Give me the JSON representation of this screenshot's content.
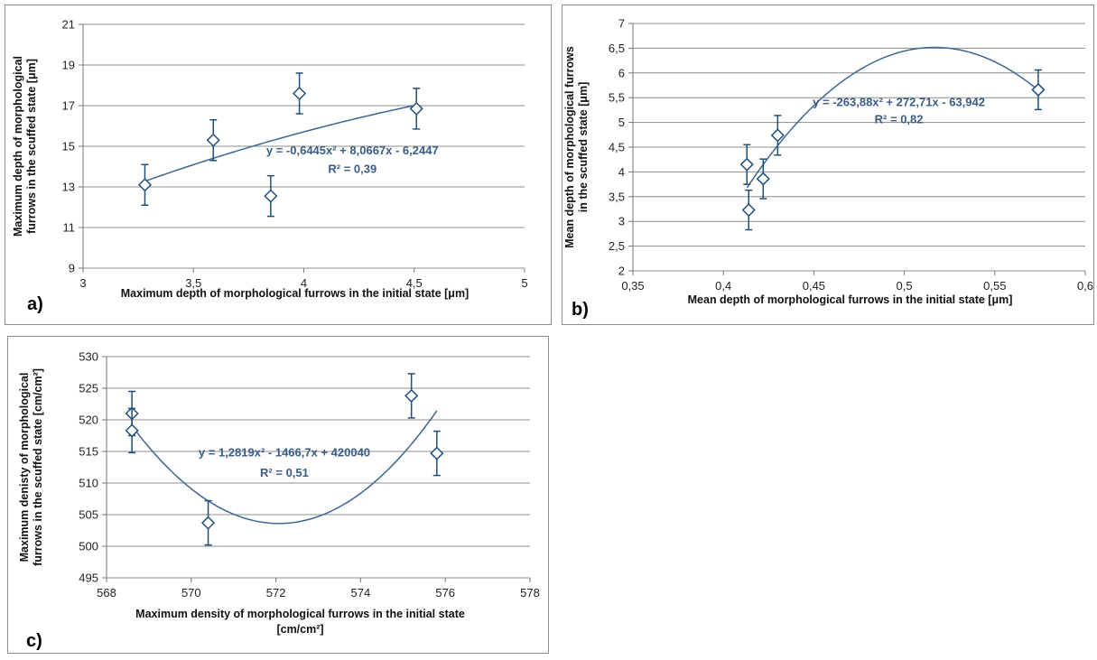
{
  "chart_data": [
    {
      "type": "scatter",
      "panel_label": "a)",
      "xlabel": "Maximum depth of morphological furrows in the initial state [μm]",
      "ylabel_lines": [
        "Maximum depth of morphological",
        "furrows in the scuffed state [μm]"
      ],
      "xlim": [
        3,
        5
      ],
      "ylim": [
        9,
        21
      ],
      "xticks": [
        3,
        3.5,
        4,
        4.5,
        5
      ],
      "xtick_labels": [
        "3",
        "3,5",
        "4",
        "4,5",
        "5"
      ],
      "yticks": [
        9,
        11,
        13,
        15,
        17,
        19,
        21
      ],
      "ytick_labels": [
        "9",
        "11",
        "13",
        "15",
        "17",
        "19",
        "21"
      ],
      "grid": true,
      "points": [
        {
          "x": 3.28,
          "y": 13.1,
          "err": 1.0
        },
        {
          "x": 3.59,
          "y": 15.3,
          "err": 1.0
        },
        {
          "x": 3.85,
          "y": 12.55,
          "err": 1.0
        },
        {
          "x": 3.98,
          "y": 17.6,
          "err": 1.0
        },
        {
          "x": 4.51,
          "y": 16.85,
          "err": 1.0
        }
      ],
      "trendline": {
        "coeffs": [
          -0.6445,
          8.0667,
          -6.2447
        ],
        "x_range": [
          3.28,
          4.51
        ]
      },
      "equation": "y = -0,6445x² + 8,0667x - 6,2447",
      "r2": "R² = 0,39",
      "eq_pos": {
        "x": 4.22,
        "y": 14.6
      },
      "r2_pos": {
        "x": 4.22,
        "y": 13.7
      }
    },
    {
      "type": "scatter",
      "panel_label": "b)",
      "xlabel": "Mean depth of morphological  furrows in the initial state [μm]",
      "ylabel_lines": [
        "Mean depth of morphological furrows",
        "in the scuffed state [μm]"
      ],
      "xlim": [
        0.35,
        0.6
      ],
      "ylim": [
        2,
        7
      ],
      "xticks": [
        0.35,
        0.4,
        0.45,
        0.5,
        0.55,
        0.6
      ],
      "xtick_labels": [
        "0,35",
        "0,4",
        "0,45",
        "0,5",
        "0,55",
        "0,6"
      ],
      "yticks": [
        2,
        2.5,
        3,
        3.5,
        4,
        4.5,
        5,
        5.5,
        6,
        6.5,
        7
      ],
      "ytick_labels": [
        "2",
        "2,5",
        "3",
        "3,5",
        "4",
        "4,5",
        "5",
        "5,5",
        "6",
        "6,5",
        "7"
      ],
      "grid": true,
      "points": [
        {
          "x": 0.413,
          "y": 4.15,
          "err": 0.4
        },
        {
          "x": 0.414,
          "y": 3.23,
          "err": 0.4
        },
        {
          "x": 0.422,
          "y": 3.86,
          "err": 0.4
        },
        {
          "x": 0.43,
          "y": 4.74,
          "err": 0.4
        },
        {
          "x": 0.574,
          "y": 5.66,
          "err": 0.4
        }
      ],
      "trendline": {
        "coeffs": [
          -263.88,
          272.71,
          -63.942
        ],
        "x_range": [
          0.413,
          0.574
        ]
      },
      "equation": "y = -263,88x² + 272,71x - 63,942",
      "r2": "R² = 0,82",
      "eq_pos": {
        "x": 0.497,
        "y": 5.33
      },
      "r2_pos": {
        "x": 0.497,
        "y": 4.98
      }
    },
    {
      "type": "scatter",
      "panel_label": "c)",
      "xlabel_lines": [
        "Maximum density of morphological  furrows in the initial state",
        "[cm/cm²]"
      ],
      "ylabel_lines": [
        "Maximum denisty of morphological",
        "furrows in the scuffed  state [cm/cm²]"
      ],
      "xlim": [
        568,
        578
      ],
      "ylim": [
        495,
        530
      ],
      "xticks": [
        568,
        570,
        572,
        574,
        576,
        578
      ],
      "xtick_labels": [
        "568",
        "570",
        "572",
        "574",
        "576",
        "578"
      ],
      "yticks": [
        495,
        500,
        505,
        510,
        515,
        520,
        525,
        530
      ],
      "ytick_labels": [
        "495",
        "500",
        "505",
        "510",
        "515",
        "520",
        "525",
        "530"
      ],
      "grid": true,
      "points": [
        {
          "x": 568.6,
          "y": 521.0,
          "err": 3.5
        },
        {
          "x": 568.6,
          "y": 518.3,
          "err": 3.5
        },
        {
          "x": 570.4,
          "y": 503.7,
          "err": 3.5
        },
        {
          "x": 575.2,
          "y": 523.8,
          "err": 3.5
        },
        {
          "x": 575.8,
          "y": 514.7,
          "err": 3.5
        }
      ],
      "trendline": {
        "coeffs": [
          1.2819,
          -1466.7,
          420040
        ],
        "vertex_x": 572.07,
        "vertex_y": 503.6,
        "x_range": [
          568.6,
          575.8
        ]
      },
      "equation": "y = 1,2819x² - 1466,7x + 420040",
      "r2": "R² = 0,51",
      "eq_pos": {
        "x": 572.2,
        "y": 514.2
      },
      "r2_pos": {
        "x": 572.2,
        "y": 511.0
      }
    }
  ],
  "colors": {
    "series": "#1f4e7a",
    "trend": "#3d6694",
    "grid": "#8c8c8c",
    "equation": "#3a5d86"
  }
}
